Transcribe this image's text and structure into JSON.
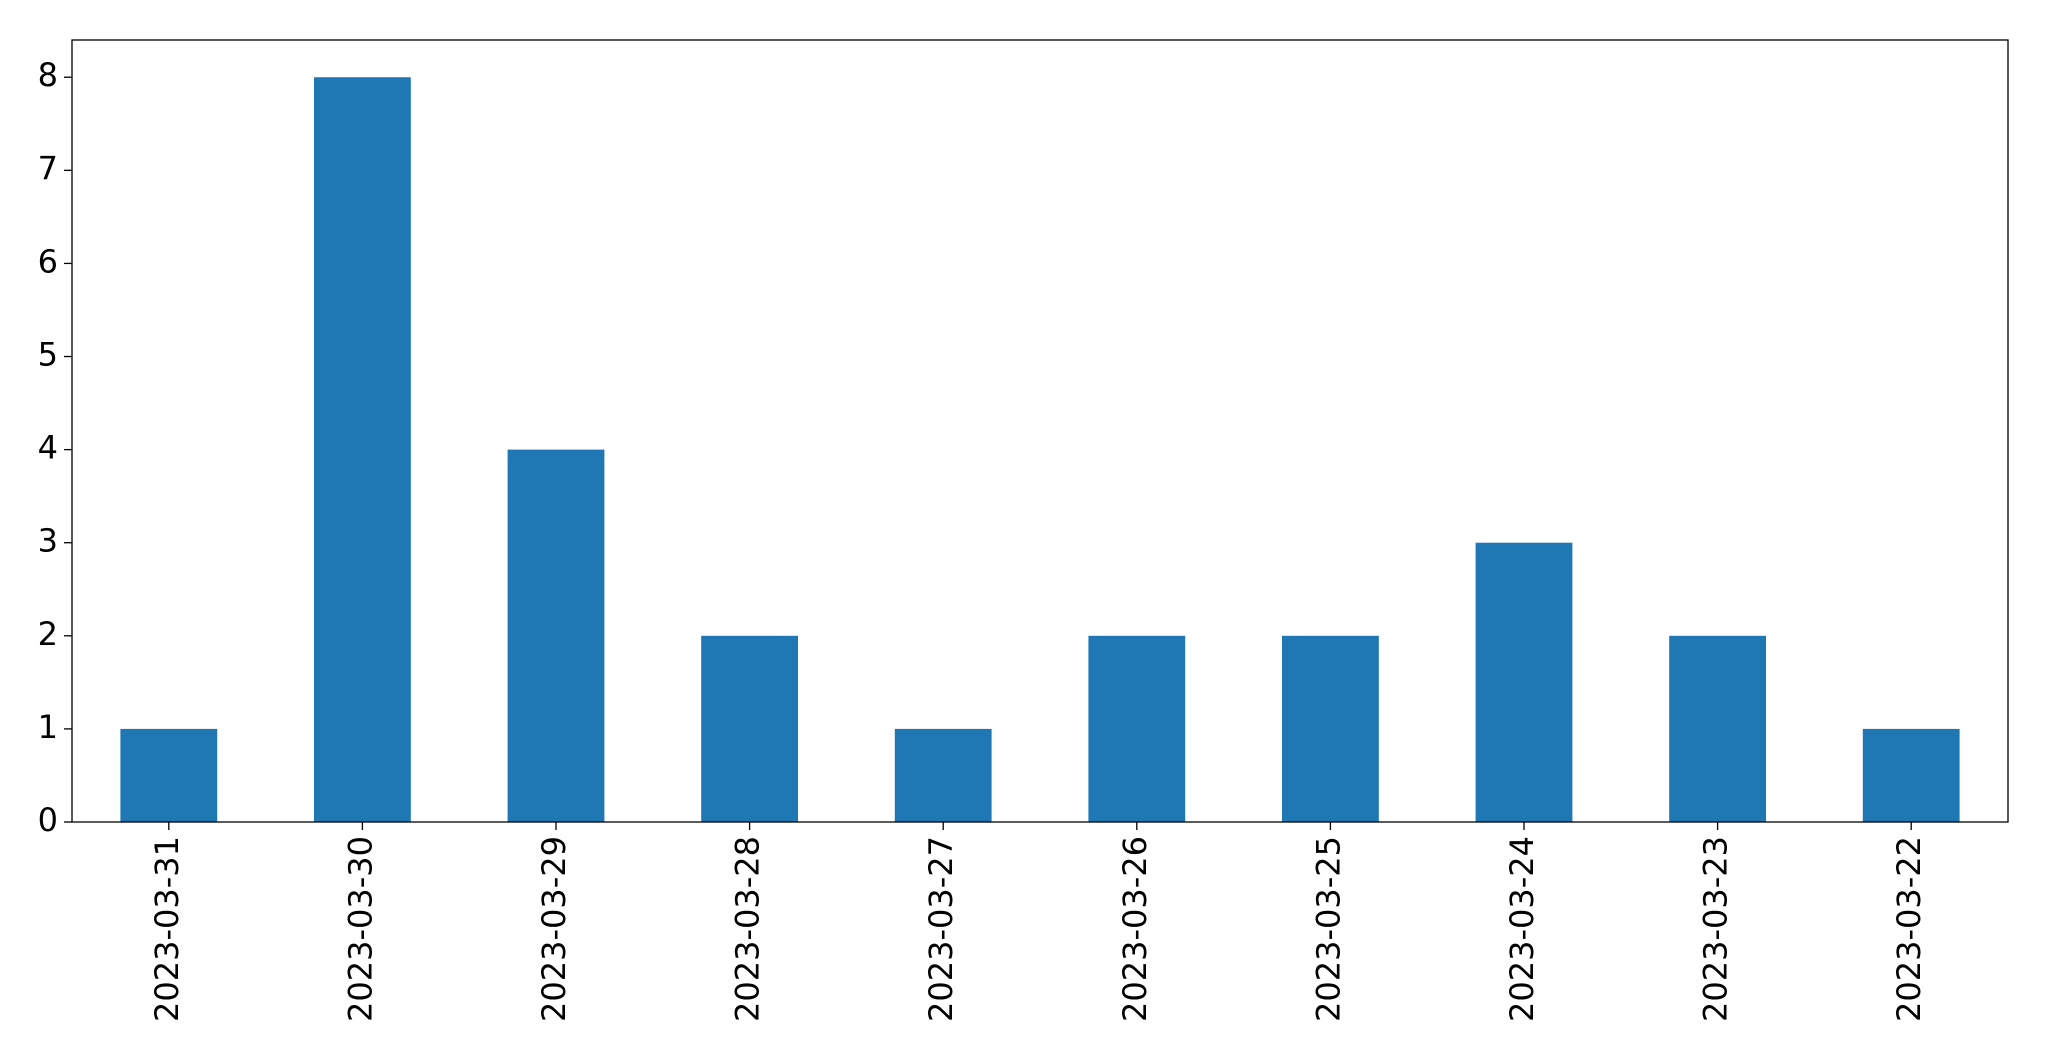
{
  "chart_data": {
    "type": "bar",
    "categories": [
      "2023-03-31",
      "2023-03-30",
      "2023-03-29",
      "2023-03-28",
      "2023-03-27",
      "2023-03-26",
      "2023-03-25",
      "2023-03-24",
      "2023-03-23",
      "2023-03-22"
    ],
    "values": [
      1,
      8,
      4,
      2,
      1,
      2,
      2,
      3,
      2,
      1
    ],
    "color": "#1f77b4",
    "ylim": [
      0,
      8.4
    ],
    "yticks": [
      0,
      1,
      2,
      3,
      4,
      5,
      6,
      7,
      8
    ],
    "grid": false
  }
}
